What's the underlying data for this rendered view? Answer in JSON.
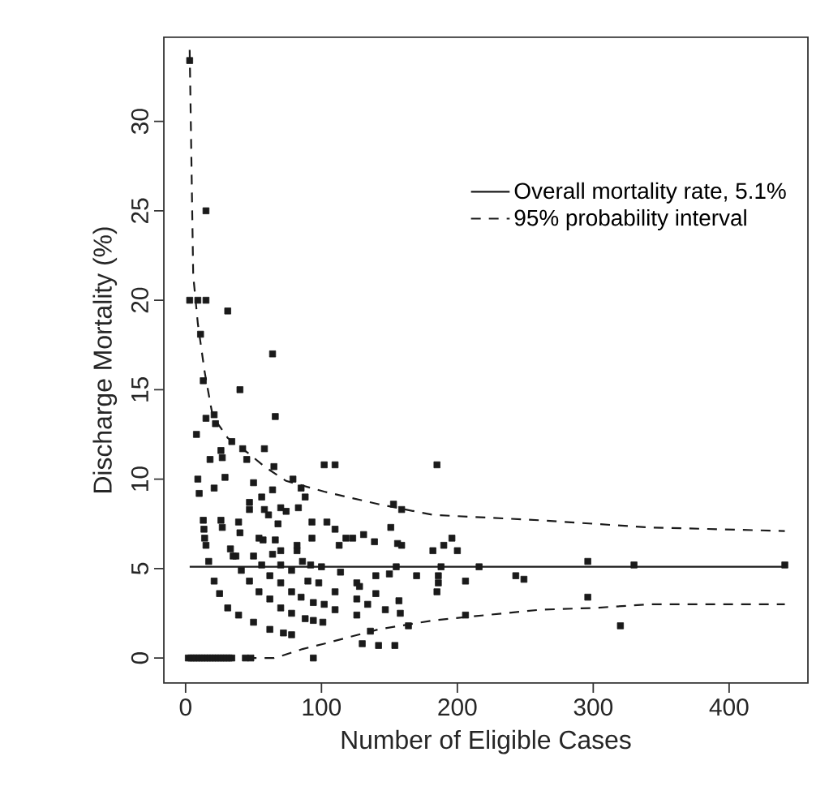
{
  "chart_data": {
    "type": "scatter",
    "xlabel": "Number of Eligible Cases",
    "ylabel": "Discharge Mortality (%)",
    "xlim": [
      -16,
      458
    ],
    "ylim": [
      -1.4,
      34.7
    ],
    "xticks": [
      0,
      100,
      200,
      300,
      400
    ],
    "yticks": [
      0,
      5,
      10,
      15,
      20,
      25,
      30
    ],
    "grid": false,
    "legend": "top right",
    "marker": "square",
    "series": [
      {
        "color": "#1a1a1a",
        "x": [
          3,
          15,
          3,
          9,
          15,
          31,
          11,
          64,
          13,
          40,
          15,
          21,
          66,
          8,
          22,
          34,
          42,
          45,
          26,
          27,
          58,
          18,
          9,
          29,
          10,
          21,
          50,
          64,
          65,
          79,
          102,
          110,
          185,
          85,
          88,
          47,
          47,
          56,
          58,
          61,
          70,
          74,
          83,
          93,
          93,
          104,
          110,
          153,
          159,
          151,
          131,
          118,
          123,
          139,
          113,
          156,
          159,
          182,
          190,
          196,
          200,
          13,
          13.5,
          14,
          15,
          26,
          27,
          39,
          40,
          33,
          37,
          17,
          21,
          25,
          31,
          39,
          50,
          62,
          72,
          78,
          35,
          41,
          47,
          54,
          62,
          70,
          78,
          88,
          94,
          101,
          50,
          56,
          62,
          70,
          78,
          85,
          94,
          102,
          110,
          126,
          64,
          70,
          78,
          90,
          98,
          110,
          126,
          134,
          147,
          57,
          66,
          70,
          82,
          86,
          92,
          100,
          114,
          126,
          140,
          150,
          155,
          54,
          68,
          82,
          130,
          142,
          154,
          136,
          164,
          158,
          157,
          140,
          128,
          170,
          185,
          186,
          188,
          186,
          206,
          216,
          206,
          243,
          249,
          296,
          296,
          320,
          330,
          441,
          94,
          2,
          4,
          6,
          8,
          10,
          12,
          14,
          16,
          18,
          20,
          22,
          24,
          26,
          28,
          30,
          32,
          34,
          44,
          48
        ],
        "values": [
          33.4,
          25.0,
          20.0,
          20.0,
          20.0,
          19.4,
          18.1,
          17.0,
          15.5,
          15.0,
          13.4,
          13.6,
          13.5,
          12.5,
          13.1,
          12.1,
          11.7,
          11.1,
          11.6,
          11.2,
          11.7,
          11.1,
          10.0,
          10.1,
          9.2,
          9.5,
          9.8,
          9.4,
          10.7,
          10.0,
          10.8,
          10.8,
          10.8,
          9.5,
          9.0,
          8.7,
          8.3,
          9.0,
          8.3,
          8.0,
          8.4,
          8.2,
          8.4,
          7.6,
          6.7,
          7.6,
          7.2,
          8.6,
          8.3,
          7.3,
          6.9,
          6.7,
          6.7,
          6.5,
          6.3,
          6.4,
          6.3,
          6.0,
          6.3,
          6.7,
          6.0,
          7.7,
          7.2,
          6.7,
          6.3,
          7.7,
          7.3,
          7.6,
          7.0,
          6.1,
          5.7,
          5.4,
          4.3,
          3.6,
          2.8,
          2.4,
          2.0,
          1.6,
          1.4,
          1.3,
          5.7,
          4.9,
          4.3,
          3.7,
          3.3,
          2.8,
          2.5,
          2.2,
          2.1,
          2.0,
          5.7,
          5.2,
          4.6,
          4.2,
          3.7,
          3.4,
          3.1,
          3.0,
          2.7,
          2.4,
          5.8,
          5.2,
          4.9,
          4.3,
          4.2,
          3.7,
          3.3,
          3.0,
          2.7,
          6.6,
          6.6,
          6.0,
          6.0,
          5.4,
          5.2,
          5.1,
          4.8,
          4.2,
          4.6,
          4.7,
          5.1,
          6.7,
          7.5,
          6.3,
          0.8,
          0.7,
          0.7,
          1.5,
          1.8,
          2.5,
          3.2,
          3.6,
          4.0,
          4.6,
          3.7,
          4.6,
          5.1,
          4.2,
          4.3,
          5.1,
          2.4,
          4.6,
          4.4,
          5.4,
          3.4,
          1.8,
          5.2,
          5.2,
          0,
          0,
          0,
          0,
          0,
          0,
          0,
          0,
          0,
          0,
          0,
          0,
          0,
          0,
          0,
          0,
          0,
          0,
          0,
          0
        ]
      },
      {
        "type": "line",
        "name": "Overall mortality rate, 5.1%",
        "color": "#1a1a1a",
        "line_style": "solid",
        "marker": "none",
        "x": [
          3,
          441
        ],
        "values": [
          5.1,
          5.1
        ]
      },
      {
        "type": "line",
        "name": "95% probability interval",
        "color": "#1a1a1a",
        "line_style": "dashed",
        "marker": "none",
        "x": [
          3,
          5.6,
          9,
          14,
          20,
          31,
          47,
          58,
          74,
          102,
          142,
          182,
          261,
          341,
          441
        ],
        "values": [
          34,
          21.4,
          18.7,
          16.0,
          13.5,
          12.3,
          11.4,
          10.7,
          9.9,
          9.3,
          8.6,
          8.0,
          7.7,
          7.3,
          7.1
        ]
      },
      {
        "type": "line",
        "color": "#1a1a1a",
        "line_style": "dashed",
        "marker": "none",
        "x": [
          45,
          65,
          70,
          86,
          102,
          142,
          182,
          221,
          261,
          301,
          341,
          441
        ],
        "values": [
          0,
          0,
          0.1,
          0.5,
          0.8,
          1.6,
          2.1,
          2.4,
          2.7,
          2.8,
          3.0,
          3.0
        ]
      }
    ]
  }
}
